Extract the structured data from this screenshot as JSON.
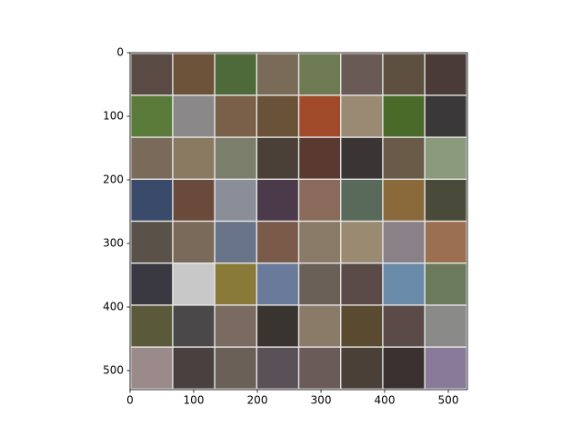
{
  "chart_data": {
    "type": "image",
    "xlim": [
      0,
      530
    ],
    "ylim": [
      530,
      0
    ],
    "xticks": [
      0,
      100,
      200,
      300,
      400,
      500
    ],
    "yticks": [
      0,
      100,
      200,
      300,
      400,
      500
    ],
    "tile_size": 64,
    "padding": 2,
    "tile_colors": [
      [
        "#5a4a44",
        "#6b5238",
        "#4f6a3a",
        "#7a6a58",
        "#6e7a52",
        "#6a5a56",
        "#5e5040",
        "#4a3a38"
      ],
      [
        "#5a7a3a",
        "#8a8888",
        "#7a6048",
        "#6a5238",
        "#a04a2a",
        "#9a8a74",
        "#4a6a2a",
        "#3a3838"
      ],
      [
        "#7a6a5a",
        "#8a7a62",
        "#7a7e6a",
        "#4a4038",
        "#5a3a30",
        "#3a3434",
        "#6a5a48",
        "#8a9a7a"
      ],
      [
        "#3a4a6a",
        "#6a4a3a",
        "#8a8e98",
        "#4a3a4a",
        "#8a6a5a",
        "#5a6a5a",
        "#8a6a3a",
        "#4a4a3a"
      ],
      [
        "#5a5248",
        "#7a6a5a",
        "#6a7488",
        "#7a5a48",
        "#8a7a68",
        "#9a8a72",
        "#8a8088",
        "#9a7050"
      ],
      [
        "#3a3840",
        "#c8c8c8",
        "#8a7a3a",
        "#6a7a9a",
        "#6a6058",
        "#5a4a48",
        "#6a8aaa",
        "#6a7a5a"
      ],
      [
        "#5a5a3a",
        "#4a4848",
        "#7a6a60",
        "#3a3430",
        "#8a7a68",
        "#5a4a30",
        "#5a4a48",
        "#8a8a88"
      ],
      [
        "#9a8a8a",
        "#4a4040",
        "#6a6058",
        "#5a5058",
        "#6a5a58",
        "#4a4038",
        "#3a3030",
        "#8a7a9a"
      ]
    ]
  }
}
